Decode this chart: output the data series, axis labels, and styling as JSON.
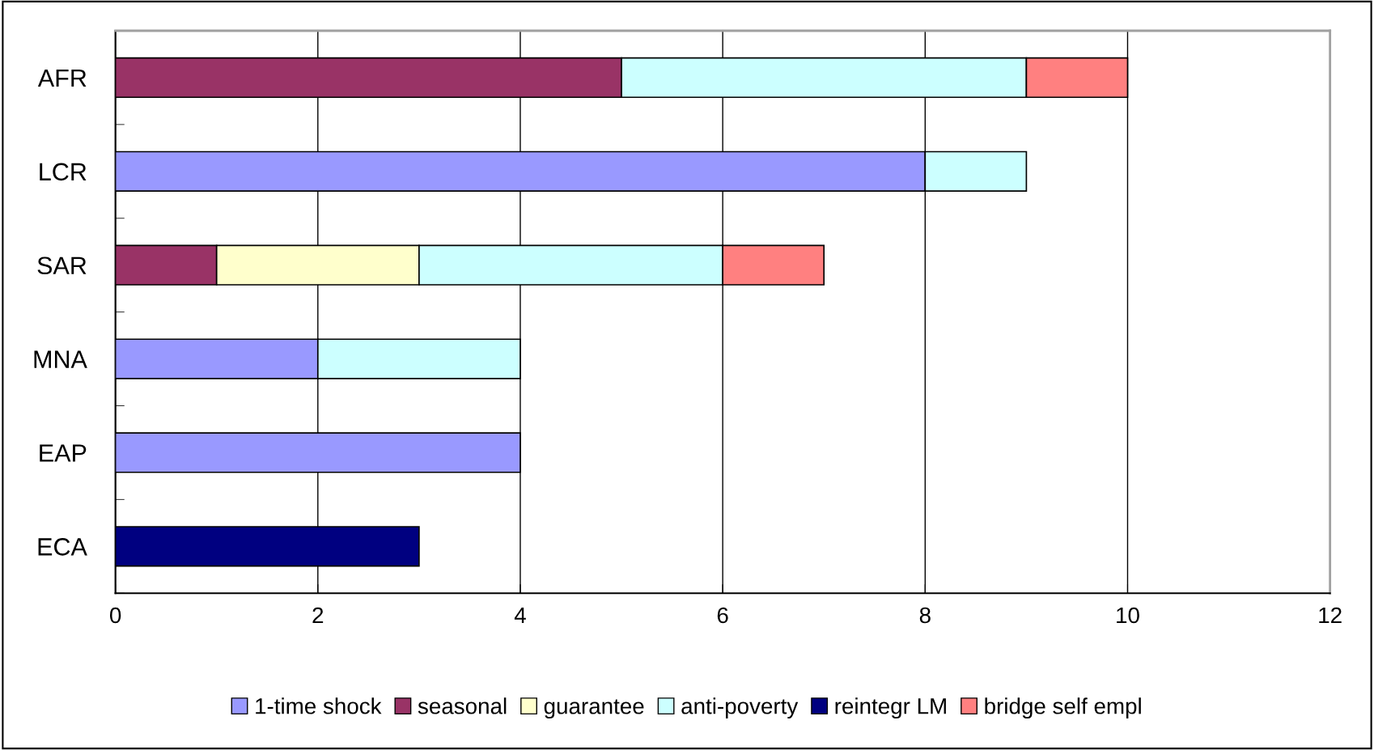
{
  "chart_data": {
    "type": "bar",
    "orientation": "horizontal",
    "stacked": true,
    "categories": [
      "AFR",
      "LCR",
      "SAR",
      "MNA",
      "EAP",
      "ECA"
    ],
    "series": [
      {
        "name": "1-time shock",
        "color": "#9999ff",
        "values": [
          null,
          8,
          null,
          2,
          4,
          null
        ]
      },
      {
        "name": "seasonal",
        "color": "#993366",
        "values": [
          5,
          null,
          1,
          null,
          null,
          null
        ]
      },
      {
        "name": "guarantee",
        "color": "#ffffcc",
        "values": [
          null,
          null,
          2,
          null,
          null,
          null
        ]
      },
      {
        "name": "anti-poverty",
        "color": "#ccffff",
        "values": [
          4,
          1,
          3,
          2,
          null,
          null
        ]
      },
      {
        "name": "reintegr LM",
        "color": "#000080",
        "values": [
          null,
          null,
          null,
          null,
          null,
          3
        ]
      },
      {
        "name": "bridge self empl",
        "color": "#ff8080",
        "values": [
          1,
          null,
          1,
          null,
          null,
          null
        ]
      }
    ],
    "xlim": [
      0,
      12
    ],
    "xticks": [
      0,
      2,
      4,
      6,
      8,
      10,
      12
    ],
    "grid": "x",
    "legend": "bottom"
  }
}
